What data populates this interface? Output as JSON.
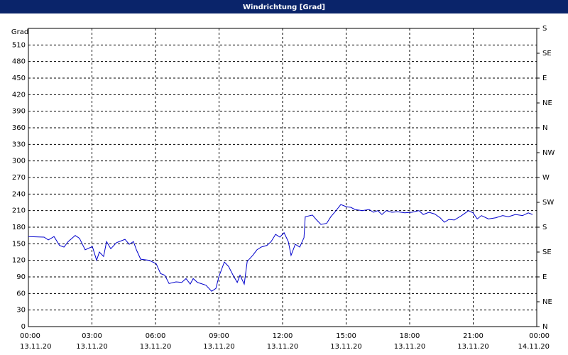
{
  "chart_data": {
    "type": "line",
    "title": "Windrichtung [Grad]",
    "ylabel": "Grad",
    "x": [
      0,
      0.74,
      0.94,
      1.21,
      1.47,
      1.68,
      1.88,
      2.21,
      2.41,
      2.68,
      3.02,
      3.22,
      3.35,
      3.55,
      3.69,
      3.89,
      4.16,
      4.56,
      4.76,
      4.96,
      5.1,
      5.3,
      5.7,
      6.03,
      6.24,
      6.44,
      6.64,
      6.97,
      7.24,
      7.44,
      7.64,
      7.78,
      7.98,
      8.38,
      8.65,
      8.85,
      8.99,
      9.25,
      9.45,
      9.65,
      9.86,
      9.99,
      10.19,
      10.33,
      10.59,
      10.79,
      10.99,
      11.26,
      11.46,
      11.67,
      11.87,
      12.07,
      12.27,
      12.4,
      12.6,
      12.81,
      13.01,
      13.07,
      13.41,
      13.61,
      13.81,
      14.08,
      14.28,
      14.48,
      14.75,
      15.02,
      15.22,
      15.42,
      15.76,
      16.09,
      16.29,
      16.49,
      16.69,
      16.9,
      17.16,
      17.43,
      17.77,
      18.1,
      18.44,
      18.64,
      18.91,
      19.18,
      19.44,
      19.64,
      19.85,
      20.11,
      20.45,
      20.78,
      20.99,
      21.19,
      21.39,
      21.72,
      22.06,
      22.39,
      22.66,
      22.99,
      23.33,
      23.6,
      23.8
    ],
    "series": [
      {
        "name": "Windrichtung",
        "color": "#0000cc",
        "values": [
          163,
          162,
          157,
          163,
          147,
          144,
          154,
          165,
          160,
          139,
          145,
          120,
          135,
          127,
          154,
          141,
          152,
          158,
          149,
          154,
          139,
          122,
          120,
          114,
          96,
          93,
          78,
          81,
          80,
          87,
          77,
          87,
          80,
          75,
          64,
          69,
          90,
          117,
          109,
          94,
          80,
          93,
          77,
          118,
          129,
          139,
          144,
          147,
          154,
          167,
          162,
          170,
          154,
          129,
          149,
          144,
          161,
          199,
          202,
          193,
          185,
          187,
          199,
          208,
          221,
          217,
          216,
          212,
          210,
          212,
          207,
          210,
          203,
          210,
          207,
          208,
          206,
          207,
          210,
          203,
          207,
          204,
          197,
          189,
          194,
          193,
          201,
          210,
          206,
          195,
          201,
          195,
          197,
          201,
          199,
          203,
          201,
          206,
          203
        ]
      }
    ],
    "xlim": [
      0,
      24
    ],
    "xticks": [
      {
        "value": 0,
        "label": "00:00"
      },
      {
        "value": 3,
        "label": "03:00"
      },
      {
        "value": 6,
        "label": "06:00"
      },
      {
        "value": 9,
        "label": "09:00"
      },
      {
        "value": 12,
        "label": "12:00"
      },
      {
        "value": 15,
        "label": "15:00"
      },
      {
        "value": 18,
        "label": "18:00"
      },
      {
        "value": 21,
        "label": "21:00"
      },
      {
        "value": 24,
        "label": "00:00"
      }
    ],
    "xtick_dates": [
      "13.11.20",
      "13.11.20",
      "13.11.20",
      "13.11.20",
      "13.11.20",
      "13.11.20",
      "13.11.20",
      "13.11.20",
      "14.11.20"
    ],
    "ylim": [
      0,
      540
    ],
    "yticks": [
      0,
      30,
      60,
      90,
      120,
      150,
      180,
      210,
      240,
      270,
      300,
      330,
      360,
      390,
      420,
      450,
      480,
      510
    ],
    "y2lim": [
      0,
      540
    ],
    "y2ticks": [
      {
        "value": 0,
        "label": "N"
      },
      {
        "value": 45,
        "label": "NE"
      },
      {
        "value": 90,
        "label": "E"
      },
      {
        "value": 135,
        "label": "SE"
      },
      {
        "value": 180,
        "label": "S"
      },
      {
        "value": 225,
        "label": "SW"
      },
      {
        "value": 270,
        "label": "W"
      },
      {
        "value": 315,
        "label": "NW"
      },
      {
        "value": 360,
        "label": "N"
      },
      {
        "value": 405,
        "label": "NE"
      },
      {
        "value": 450,
        "label": "E"
      },
      {
        "value": 495,
        "label": "SE"
      },
      {
        "value": 540,
        "label": "S"
      }
    ],
    "grid": true
  }
}
